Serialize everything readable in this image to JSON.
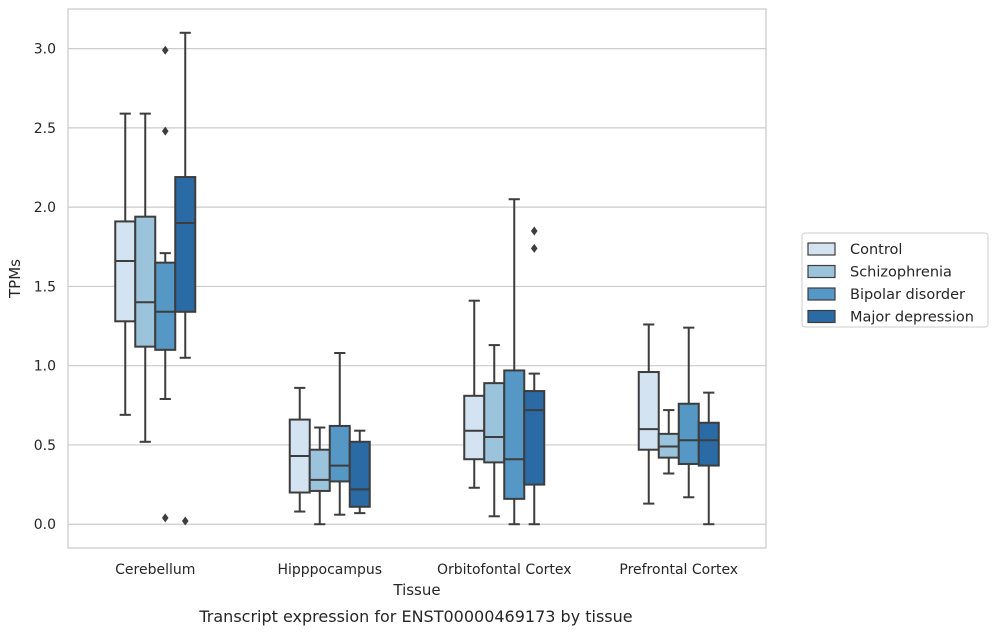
{
  "caption": "Transcript expression for ENST00000469173 by tissue",
  "chart_data": {
    "type": "boxplot",
    "xlabel": "Tissue",
    "ylabel": "TPMs",
    "ylim": [
      -0.15,
      3.25
    ],
    "yticks": [
      0.0,
      0.5,
      1.0,
      1.5,
      2.0,
      2.5,
      3.0
    ],
    "ytick_labels": [
      "0.0",
      "0.5",
      "1.0",
      "1.5",
      "2.0",
      "2.5",
      "3.0"
    ],
    "grid": "horizontal",
    "legend_position": "right",
    "categories": [
      "Cerebellum",
      "Hipppocampus",
      "Orbitofontal Cortex",
      "Prefrontal Cortex"
    ],
    "series": [
      {
        "name": "Control",
        "color": "#d4e3f2",
        "boxes": [
          {
            "whislo": 0.69,
            "q1": 1.28,
            "med": 1.66,
            "q3": 1.91,
            "whishi": 2.59,
            "fliers": []
          },
          {
            "whislo": 0.08,
            "q1": 0.2,
            "med": 0.43,
            "q3": 0.66,
            "whishi": 0.86,
            "fliers": []
          },
          {
            "whislo": 0.23,
            "q1": 0.41,
            "med": 0.59,
            "q3": 0.81,
            "whishi": 1.41,
            "fliers": []
          },
          {
            "whislo": 0.13,
            "q1": 0.47,
            "med": 0.6,
            "q3": 0.96,
            "whishi": 1.26,
            "fliers": []
          }
        ]
      },
      {
        "name": "Schizophrenia",
        "color": "#9cc3dc",
        "boxes": [
          {
            "whislo": 0.52,
            "q1": 1.12,
            "med": 1.4,
            "q3": 1.94,
            "whishi": 2.59,
            "fliers": []
          },
          {
            "whislo": 0.0,
            "q1": 0.21,
            "med": 0.28,
            "q3": 0.47,
            "whishi": 0.61,
            "fliers": []
          },
          {
            "whislo": 0.05,
            "q1": 0.39,
            "med": 0.55,
            "q3": 0.89,
            "whishi": 1.13,
            "fliers": []
          },
          {
            "whislo": 0.32,
            "q1": 0.42,
            "med": 0.49,
            "q3": 0.57,
            "whishi": 0.72,
            "fliers": []
          }
        ]
      },
      {
        "name": "Bipolar disorder",
        "color": "#5597c5",
        "boxes": [
          {
            "whislo": 0.79,
            "q1": 1.1,
            "med": 1.34,
            "q3": 1.65,
            "whishi": 1.71,
            "fliers": [
              2.99,
              2.48,
              0.04
            ]
          },
          {
            "whislo": 0.06,
            "q1": 0.27,
            "med": 0.37,
            "q3": 0.62,
            "whishi": 1.08,
            "fliers": []
          },
          {
            "whislo": 0.0,
            "q1": 0.16,
            "med": 0.41,
            "q3": 0.97,
            "whishi": 2.05,
            "fliers": []
          },
          {
            "whislo": 0.17,
            "q1": 0.38,
            "med": 0.53,
            "q3": 0.76,
            "whishi": 1.24,
            "fliers": []
          }
        ]
      },
      {
        "name": "Major depression",
        "color": "#2a6aa5",
        "boxes": [
          {
            "whislo": 1.05,
            "q1": 1.34,
            "med": 1.9,
            "q3": 2.19,
            "whishi": 3.1,
            "fliers": [
              0.02
            ]
          },
          {
            "whislo": 0.07,
            "q1": 0.11,
            "med": 0.22,
            "q3": 0.52,
            "whishi": 0.59,
            "fliers": []
          },
          {
            "whislo": 0.0,
            "q1": 0.25,
            "med": 0.72,
            "q3": 0.84,
            "whishi": 0.95,
            "fliers": [
              1.85,
              1.74
            ]
          },
          {
            "whislo": 0.0,
            "q1": 0.37,
            "med": 0.53,
            "q3": 0.64,
            "whishi": 0.83,
            "fliers": []
          }
        ]
      }
    ]
  }
}
